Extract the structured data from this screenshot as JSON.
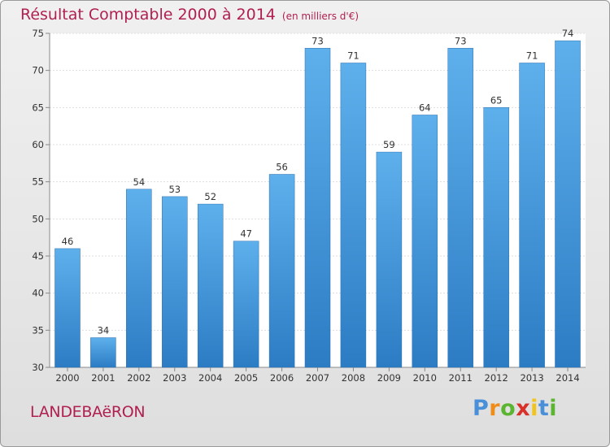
{
  "chart_data": {
    "type": "bar",
    "title": "Résultat Comptable 2000 à 2014",
    "subtitle": "(en milliers d'€)",
    "categories": [
      "2000",
      "2001",
      "2002",
      "2003",
      "2004",
      "2005",
      "2006",
      "2007",
      "2008",
      "2009",
      "2010",
      "2011",
      "2012",
      "2013",
      "2014"
    ],
    "values": [
      46,
      34,
      54,
      53,
      52,
      47,
      56,
      73,
      71,
      59,
      64,
      73,
      65,
      71,
      74
    ],
    "ylim": [
      30,
      75
    ],
    "yticks": [
      30,
      35,
      40,
      45,
      50,
      55,
      60,
      65,
      70,
      75
    ],
    "xlabel": "",
    "ylabel": "",
    "grid": true,
    "bar_color": "#3f93d9"
  },
  "footer": {
    "commune": "LANDEBAëRON",
    "logo": {
      "letters": [
        "P",
        "r",
        "o",
        "x",
        "i",
        "t",
        "i"
      ],
      "colors": [
        "#4a90d9",
        "#f08c1a",
        "#5cb531",
        "#d8312a",
        "#f0c419",
        "#4a90d9",
        "#5cb531"
      ]
    }
  }
}
